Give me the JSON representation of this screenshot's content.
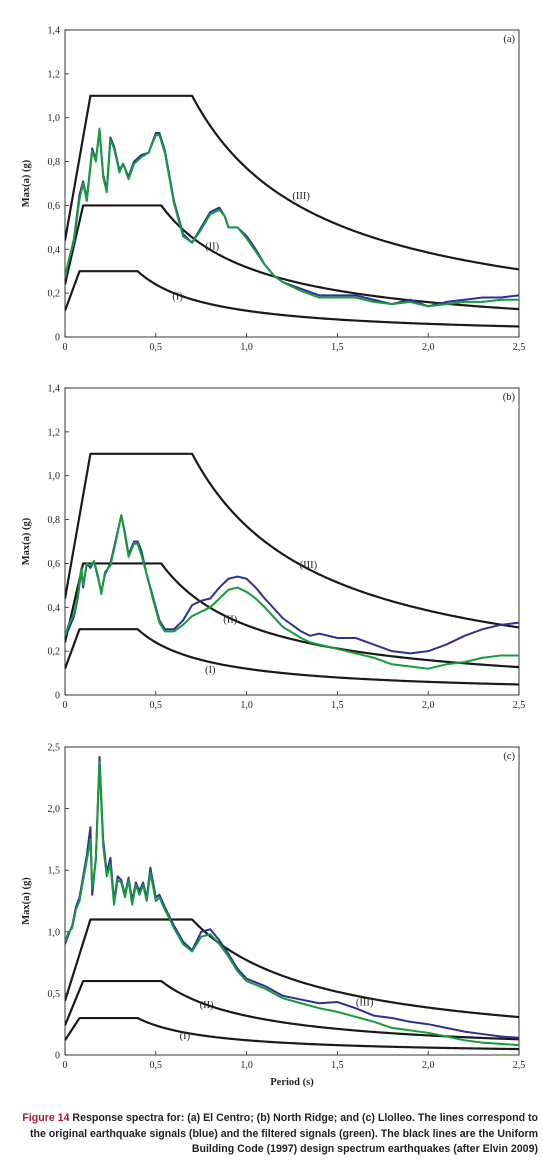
{
  "caption": {
    "label": "Figure 14",
    "text": "Response spectra for: (a) El Centro; (b) North Ridge; and (c) Llolleo. The lines correspond to the original earthquake signals (blue) and the filtered signals (green). The black lines are the Uniform Building Code (1997) design spectrum earthquakes (after Elvin 2009)"
  },
  "colors": {
    "original": "#2e3192",
    "filtered": "#1a9a3e",
    "design": "#1a1a1a",
    "axis": "#231f20"
  },
  "chart_data": [
    {
      "type": "line",
      "panel_label": "(a)",
      "xlabel": "",
      "ylabel": "Max(a) (g)",
      "xlim": [
        0,
        2.5
      ],
      "ylim": [
        0,
        1.4
      ],
      "xticks": [
        "0",
        "0,5",
        "1,0",
        "1,5",
        "2,0",
        "2,5"
      ],
      "yticks": [
        "0",
        "0,2",
        "0,4",
        "0,6",
        "0,8",
        "1,0",
        "1,2",
        "1,4"
      ],
      "grid": false,
      "series": [
        {
          "key": "original",
          "x": [
            0,
            0.02,
            0.05,
            0.08,
            0.1,
            0.12,
            0.15,
            0.17,
            0.19,
            0.21,
            0.23,
            0.25,
            0.27,
            0.3,
            0.32,
            0.35,
            0.38,
            0.42,
            0.46,
            0.5,
            0.52,
            0.55,
            0.6,
            0.65,
            0.7,
            0.75,
            0.8,
            0.85,
            0.88,
            0.9,
            0.95,
            1.0,
            1.05,
            1.1,
            1.15,
            1.2,
            1.3,
            1.4,
            1.5,
            1.6,
            1.7,
            1.8,
            1.9,
            2.0,
            2.1,
            2.2,
            2.3,
            2.4,
            2.5
          ],
          "y": [
            0.27,
            0.34,
            0.45,
            0.65,
            0.71,
            0.63,
            0.86,
            0.81,
            0.94,
            0.74,
            0.67,
            0.91,
            0.87,
            0.76,
            0.79,
            0.73,
            0.8,
            0.83,
            0.84,
            0.93,
            0.93,
            0.85,
            0.62,
            0.47,
            0.43,
            0.5,
            0.57,
            0.59,
            0.55,
            0.5,
            0.5,
            0.46,
            0.4,
            0.33,
            0.28,
            0.25,
            0.22,
            0.19,
            0.19,
            0.19,
            0.17,
            0.15,
            0.17,
            0.14,
            0.16,
            0.17,
            0.18,
            0.18,
            0.19
          ]
        },
        {
          "key": "filtered",
          "x": [
            0,
            0.02,
            0.05,
            0.08,
            0.1,
            0.12,
            0.15,
            0.17,
            0.19,
            0.21,
            0.23,
            0.25,
            0.27,
            0.3,
            0.32,
            0.35,
            0.38,
            0.42,
            0.46,
            0.5,
            0.52,
            0.55,
            0.6,
            0.65,
            0.7,
            0.75,
            0.8,
            0.85,
            0.88,
            0.9,
            0.95,
            1.0,
            1.05,
            1.1,
            1.15,
            1.2,
            1.3,
            1.4,
            1.5,
            1.6,
            1.7,
            1.8,
            1.9,
            2.0,
            2.1,
            2.2,
            2.3,
            2.4,
            2.5
          ],
          "y": [
            0.27,
            0.35,
            0.44,
            0.63,
            0.7,
            0.62,
            0.85,
            0.8,
            0.95,
            0.73,
            0.66,
            0.9,
            0.86,
            0.75,
            0.79,
            0.72,
            0.79,
            0.82,
            0.84,
            0.92,
            0.92,
            0.84,
            0.61,
            0.46,
            0.43,
            0.49,
            0.56,
            0.58,
            0.55,
            0.5,
            0.5,
            0.45,
            0.39,
            0.33,
            0.28,
            0.25,
            0.21,
            0.18,
            0.18,
            0.18,
            0.16,
            0.15,
            0.16,
            0.14,
            0.15,
            0.16,
            0.16,
            0.17,
            0.17
          ]
        }
      ],
      "design_curves": [
        {
          "label": "(I)",
          "pga": 0.12,
          "plateau": 0.3,
          "t0": 0.08,
          "ts": 0.4,
          "label_pos": [
            0.62,
            0.17
          ]
        },
        {
          "label": "(II)",
          "pga": 0.24,
          "plateau": 0.6,
          "t0": 0.1,
          "ts": 0.53,
          "label_pos": [
            0.81,
            0.4
          ]
        },
        {
          "label": "(III)",
          "pga": 0.44,
          "plateau": 1.1,
          "t0": 0.14,
          "ts": 0.7,
          "label_pos": [
            1.3,
            0.63
          ]
        }
      ]
    },
    {
      "type": "line",
      "panel_label": "(b)",
      "xlabel": "",
      "ylabel": "Max(a) (g)",
      "xlim": [
        0,
        2.5
      ],
      "ylim": [
        0,
        1.4
      ],
      "xticks": [
        "0",
        "0,5",
        "1,0",
        "1,5",
        "2,0",
        "2,5"
      ],
      "yticks": [
        "0",
        "0,2",
        "0,4",
        "0,6",
        "0,8",
        "1,0",
        "1,2",
        "1,4"
      ],
      "grid": false,
      "series": [
        {
          "key": "original",
          "x": [
            0,
            0.02,
            0.05,
            0.07,
            0.09,
            0.1,
            0.12,
            0.14,
            0.16,
            0.18,
            0.2,
            0.22,
            0.25,
            0.28,
            0.31,
            0.33,
            0.35,
            0.38,
            0.4,
            0.42,
            0.45,
            0.48,
            0.52,
            0.55,
            0.6,
            0.65,
            0.7,
            0.75,
            0.8,
            0.85,
            0.9,
            0.95,
            1.0,
            1.05,
            1.1,
            1.2,
            1.3,
            1.35,
            1.4,
            1.5,
            1.6,
            1.7,
            1.8,
            1.9,
            2.0,
            2.1,
            2.2,
            2.3,
            2.4,
            2.5
          ],
          "y": [
            0.27,
            0.3,
            0.36,
            0.44,
            0.57,
            0.49,
            0.6,
            0.58,
            0.61,
            0.54,
            0.47,
            0.55,
            0.6,
            0.71,
            0.82,
            0.74,
            0.64,
            0.7,
            0.7,
            0.66,
            0.55,
            0.46,
            0.34,
            0.3,
            0.3,
            0.34,
            0.41,
            0.43,
            0.44,
            0.49,
            0.53,
            0.54,
            0.53,
            0.49,
            0.44,
            0.35,
            0.29,
            0.27,
            0.28,
            0.26,
            0.26,
            0.23,
            0.2,
            0.19,
            0.2,
            0.23,
            0.27,
            0.3,
            0.32,
            0.33
          ]
        },
        {
          "key": "filtered",
          "x": [
            0,
            0.02,
            0.05,
            0.07,
            0.09,
            0.1,
            0.12,
            0.14,
            0.16,
            0.18,
            0.2,
            0.22,
            0.25,
            0.28,
            0.31,
            0.33,
            0.35,
            0.38,
            0.4,
            0.42,
            0.45,
            0.48,
            0.52,
            0.55,
            0.6,
            0.65,
            0.7,
            0.75,
            0.8,
            0.85,
            0.9,
            0.95,
            1.0,
            1.05,
            1.1,
            1.2,
            1.3,
            1.35,
            1.4,
            1.5,
            1.6,
            1.7,
            1.8,
            1.9,
            2.0,
            2.1,
            2.2,
            2.3,
            2.4,
            2.5
          ],
          "y": [
            0.27,
            0.32,
            0.37,
            0.45,
            0.58,
            0.5,
            0.6,
            0.59,
            0.61,
            0.55,
            0.46,
            0.56,
            0.59,
            0.7,
            0.82,
            0.73,
            0.63,
            0.69,
            0.69,
            0.64,
            0.55,
            0.45,
            0.33,
            0.29,
            0.29,
            0.32,
            0.36,
            0.38,
            0.4,
            0.44,
            0.48,
            0.49,
            0.47,
            0.44,
            0.4,
            0.31,
            0.26,
            0.24,
            0.23,
            0.21,
            0.19,
            0.17,
            0.14,
            0.13,
            0.12,
            0.14,
            0.15,
            0.17,
            0.18,
            0.18
          ]
        }
      ],
      "design_curves": [
        {
          "label": "(I)",
          "pga": 0.12,
          "plateau": 0.3,
          "t0": 0.08,
          "ts": 0.4,
          "label_pos": [
            0.8,
            0.1
          ]
        },
        {
          "label": "(II)",
          "pga": 0.24,
          "plateau": 0.6,
          "t0": 0.1,
          "ts": 0.53,
          "label_pos": [
            0.91,
            0.33
          ]
        },
        {
          "label": "(III)",
          "pga": 0.44,
          "plateau": 1.1,
          "t0": 0.14,
          "ts": 0.7,
          "label_pos": [
            1.34,
            0.58
          ]
        }
      ]
    },
    {
      "type": "line",
      "panel_label": "(c)",
      "xlabel": "Period (s)",
      "ylabel": "Max(a) (g)",
      "xlim": [
        0,
        2.5
      ],
      "ylim": [
        0,
        2.5
      ],
      "xticks": [
        "0",
        "0,5",
        "1,0",
        "1,5",
        "2,0",
        "2,5"
      ],
      "yticks": [
        "0",
        "0,5",
        "1,0",
        "1,5",
        "2,0",
        "2,5"
      ],
      "grid": false,
      "series": [
        {
          "key": "original",
          "x": [
            0,
            0.02,
            0.04,
            0.06,
            0.08,
            0.1,
            0.12,
            0.14,
            0.15,
            0.17,
            0.19,
            0.21,
            0.23,
            0.25,
            0.27,
            0.29,
            0.31,
            0.33,
            0.35,
            0.37,
            0.39,
            0.41,
            0.43,
            0.45,
            0.47,
            0.5,
            0.52,
            0.55,
            0.6,
            0.65,
            0.7,
            0.75,
            0.8,
            0.85,
            0.9,
            0.95,
            1.0,
            1.1,
            1.2,
            1.3,
            1.4,
            1.5,
            1.6,
            1.7,
            1.8,
            1.9,
            2.0,
            2.1,
            2.2,
            2.3,
            2.4,
            2.5
          ],
          "y": [
            0.9,
            0.98,
            1.05,
            1.2,
            1.28,
            1.45,
            1.62,
            1.85,
            1.3,
            1.6,
            2.42,
            1.75,
            1.48,
            1.6,
            1.25,
            1.45,
            1.42,
            1.3,
            1.44,
            1.25,
            1.4,
            1.33,
            1.4,
            1.27,
            1.52,
            1.28,
            1.3,
            1.2,
            1.05,
            0.92,
            0.85,
            1.0,
            1.02,
            0.93,
            0.82,
            0.7,
            0.62,
            0.56,
            0.48,
            0.45,
            0.42,
            0.43,
            0.38,
            0.32,
            0.3,
            0.27,
            0.25,
            0.22,
            0.19,
            0.17,
            0.15,
            0.14
          ]
        },
        {
          "key": "filtered",
          "x": [
            0,
            0.02,
            0.04,
            0.06,
            0.08,
            0.1,
            0.12,
            0.14,
            0.15,
            0.17,
            0.19,
            0.21,
            0.23,
            0.25,
            0.27,
            0.29,
            0.31,
            0.33,
            0.35,
            0.37,
            0.39,
            0.41,
            0.43,
            0.45,
            0.47,
            0.5,
            0.52,
            0.55,
            0.6,
            0.65,
            0.7,
            0.75,
            0.8,
            0.85,
            0.9,
            0.95,
            1.0,
            1.1,
            1.2,
            1.3,
            1.4,
            1.5,
            1.6,
            1.7,
            1.8,
            1.9,
            2.0,
            2.1,
            2.2,
            2.3,
            2.4,
            2.5
          ],
          "y": [
            0.92,
            1.0,
            1.03,
            1.18,
            1.25,
            1.42,
            1.58,
            1.75,
            1.35,
            1.58,
            2.38,
            1.7,
            1.45,
            1.55,
            1.22,
            1.42,
            1.4,
            1.28,
            1.42,
            1.22,
            1.38,
            1.3,
            1.38,
            1.25,
            1.48,
            1.25,
            1.28,
            1.18,
            1.03,
            0.9,
            0.84,
            0.96,
            0.98,
            0.9,
            0.8,
            0.68,
            0.6,
            0.54,
            0.46,
            0.42,
            0.38,
            0.35,
            0.31,
            0.27,
            0.22,
            0.2,
            0.18,
            0.15,
            0.12,
            0.1,
            0.09,
            0.08
          ]
        }
      ],
      "design_curves": [
        {
          "label": "(I)",
          "pga": 0.12,
          "plateau": 0.3,
          "t0": 0.08,
          "ts": 0.4,
          "label_pos": [
            0.66,
            0.13
          ]
        },
        {
          "label": "(II)",
          "pga": 0.24,
          "plateau": 0.6,
          "t0": 0.1,
          "ts": 0.53,
          "label_pos": [
            0.78,
            0.38
          ]
        },
        {
          "label": "(III)",
          "pga": 0.44,
          "plateau": 1.1,
          "t0": 0.14,
          "ts": 0.7,
          "label_pos": [
            1.65,
            0.4
          ]
        }
      ]
    }
  ]
}
